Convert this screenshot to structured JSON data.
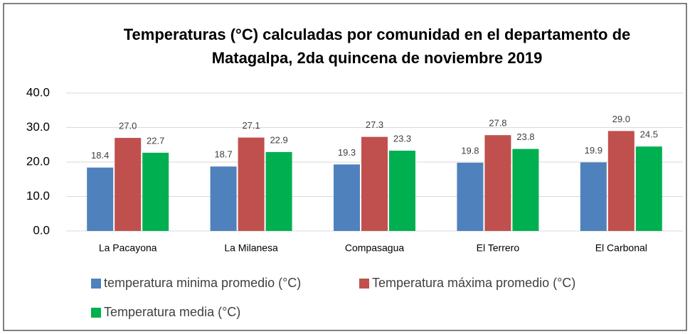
{
  "chart_data": {
    "type": "bar",
    "title": [
      "Temperaturas (°C) calculadas por comunidad en el departamento de",
      "Matagalpa, 2da  quincena de noviembre 2019"
    ],
    "categories": [
      "La Pacayona",
      "La Milanesa",
      "Compasagua",
      "El Terrero",
      "El Carbonal"
    ],
    "series": [
      {
        "name": "temperatura minima promedio (°C)",
        "color": "#4f81bd",
        "values": [
          18.4,
          18.7,
          19.3,
          19.8,
          19.9
        ],
        "value_labels": [
          "18.4",
          "18.7",
          "19.3",
          "19.8",
          "19.9"
        ]
      },
      {
        "name": "Temperatura máxima promedio (°C)",
        "color": "#c0504d",
        "values": [
          27.0,
          27.1,
          27.3,
          27.8,
          29.0
        ],
        "value_labels": [
          "27.0",
          "27.1",
          "27.3",
          "27.8",
          "29.0"
        ]
      },
      {
        "name": "Temperatura media (°C)",
        "color": "#00b050",
        "values": [
          22.7,
          22.9,
          23.3,
          23.8,
          24.5
        ],
        "value_labels": [
          "22.7",
          "22.9",
          "23.3",
          "23.8",
          "24.5"
        ]
      }
    ],
    "ylim": [
      0,
      40
    ],
    "yticks": [
      {
        "value": 0,
        "label": "0.0"
      },
      {
        "value": 10,
        "label": "10.0"
      },
      {
        "value": 20,
        "label": "20.0"
      },
      {
        "value": 30,
        "label": "30.0"
      },
      {
        "value": 40,
        "label": "40.0"
      }
    ],
    "grid": true,
    "legend": "bottom"
  }
}
